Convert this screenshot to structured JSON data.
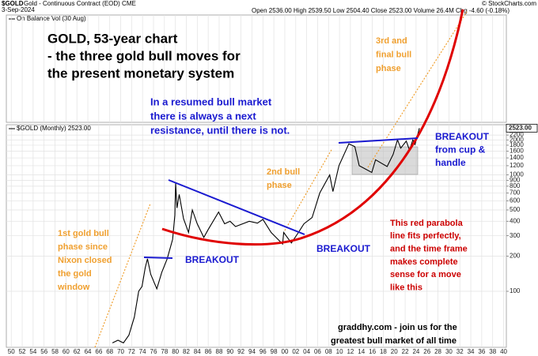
{
  "header": {
    "symbol": "$GOLD",
    "description": "Gold - Continuous Contract (EOD) CME",
    "date": "3-Sep-2024",
    "quote": "Open 2536.00 High 2539.50 Low 2504.40 Close 2523.00 Volume 26.4M Chg -4.60 (-0.18%)",
    "credit": "© StockCharts.com",
    "indicator": "On Balance Vol (30 Aug)"
  },
  "chart_data": {
    "type": "line",
    "legend": "$GOLD (Monthly) 2523.00",
    "last_value_label": "2523.00",
    "color": "#000000",
    "log_y": true,
    "grid": true,
    "x": [
      1968.5,
      1969.5,
      1970.5,
      1971.5,
      1972.5,
      1973.3,
      1973.9,
      1974.5,
      1974.9,
      1975.5,
      1976.6,
      1977.5,
      1978.5,
      1979.5,
      1979.9,
      1980.05,
      1980.3,
      1980.7,
      1981.5,
      1982.4,
      1983.1,
      1984,
      1985.2,
      1986,
      1987.9,
      1989,
      1990,
      1991,
      1993.5,
      1995,
      1996,
      1997.5,
      1999.6,
      1999.8,
      2001.2,
      2002.5,
      2003.5,
      2005,
      2006.4,
      2008.2,
      2008.8,
      2009.9,
      2011.7,
      2012.8,
      2013.6,
      2015.9,
      2016.6,
      2018.7,
      2019.8,
      2020.6,
      2021.2,
      2022.2,
      2022.8,
      2023.4,
      2023.8,
      2024.1,
      2024.6
    ],
    "values": [
      36,
      38,
      36,
      42,
      60,
      100,
      110,
      160,
      190,
      140,
      105,
      145,
      190,
      280,
      450,
      850,
      520,
      680,
      420,
      320,
      500,
      380,
      290,
      340,
      480,
      380,
      400,
      360,
      400,
      385,
      415,
      320,
      255,
      320,
      260,
      320,
      380,
      430,
      700,
      1000,
      720,
      1200,
      1850,
      1750,
      1200,
      1050,
      1350,
      1180,
      1500,
      2000,
      1700,
      1950,
      1630,
      2000,
      1830,
      2050,
      2523
    ],
    "xlim": [
      1949.1,
      2040.5
    ],
    "ylim": [
      33,
      2700
    ],
    "xticks": [
      {
        "value": 1950,
        "label": "50"
      },
      {
        "value": 1952,
        "label": "52"
      },
      {
        "value": 1954,
        "label": "54"
      },
      {
        "value": 1956,
        "label": "56"
      },
      {
        "value": 1958,
        "label": "58"
      },
      {
        "value": 1960,
        "label": "60"
      },
      {
        "value": 1962,
        "label": "62"
      },
      {
        "value": 1964,
        "label": "64"
      },
      {
        "value": 1966,
        "label": "66"
      },
      {
        "value": 1968,
        "label": "68"
      },
      {
        "value": 1970,
        "label": "70"
      },
      {
        "value": 1972,
        "label": "72"
      },
      {
        "value": 1974,
        "label": "74"
      },
      {
        "value": 1976,
        "label": "76"
      },
      {
        "value": 1978,
        "label": "78"
      },
      {
        "value": 1980,
        "label": "80"
      },
      {
        "value": 1982,
        "label": "82"
      },
      {
        "value": 1984,
        "label": "84"
      },
      {
        "value": 1986,
        "label": "86"
      },
      {
        "value": 1988,
        "label": "88"
      },
      {
        "value": 1990,
        "label": "90"
      },
      {
        "value": 1992,
        "label": "92"
      },
      {
        "value": 1994,
        "label": "94"
      },
      {
        "value": 1996,
        "label": "96"
      },
      {
        "value": 1998,
        "label": "98"
      },
      {
        "value": 2000,
        "label": "00"
      },
      {
        "value": 2002,
        "label": "02"
      },
      {
        "value": 2004,
        "label": "04"
      },
      {
        "value": 2006,
        "label": "06"
      },
      {
        "value": 2008,
        "label": "08"
      },
      {
        "value": 2010,
        "label": "10"
      },
      {
        "value": 2012,
        "label": "12"
      },
      {
        "value": 2014,
        "label": "14"
      },
      {
        "value": 2016,
        "label": "16"
      },
      {
        "value": 2018,
        "label": "18"
      },
      {
        "value": 2020,
        "label": "20"
      },
      {
        "value": 2022,
        "label": "22"
      },
      {
        "value": 2024,
        "label": "24"
      },
      {
        "value": 2026,
        "label": "26"
      },
      {
        "value": 2028,
        "label": "28"
      },
      {
        "value": 2030,
        "label": "30"
      },
      {
        "value": 2032,
        "label": "32"
      },
      {
        "value": 2034,
        "label": "34"
      },
      {
        "value": 2036,
        "label": "36"
      },
      {
        "value": 2038,
        "label": "38"
      },
      {
        "value": 2040,
        "label": "40"
      }
    ],
    "yticks": [
      100,
      200,
      300,
      400,
      500,
      600,
      700,
      800,
      900,
      1000,
      1200,
      1400,
      1600,
      1800,
      2000,
      2200
    ]
  },
  "annotations": [
    {
      "lines": [
        "GOLD, 53-year chart",
        "- the three gold bull moves for",
        "the present monetary system"
      ],
      "color": "#000000"
    },
    {
      "lines": [
        "In a resumed bull market",
        "there is always a next",
        "resistance, until there is not."
      ],
      "color": "#1a1ad0"
    },
    {
      "lines": [
        "3rd and",
        "final bull",
        "phase"
      ],
      "color": "#f0a030"
    },
    {
      "lines": [
        "2nd bull",
        "phase"
      ],
      "color": "#f0a030"
    },
    {
      "lines": [
        "1st gold bull",
        "phase since",
        "Nixon closed",
        "the gold",
        "window"
      ],
      "color": "#f0a030"
    },
    {
      "lines": [
        "BREAKOUT"
      ],
      "color": "#1a1ad0"
    },
    {
      "lines": [
        "BREAKOUT"
      ],
      "color": "#1a1ad0"
    },
    {
      "lines": [
        "BREAKOUT",
        "from cup &",
        "handle"
      ],
      "color": "#1a1ad0"
    },
    {
      "lines": [
        "This red parabola",
        "line fits perfectly,",
        "and the time frame",
        "makes complete",
        "sense for a move",
        "like this"
      ],
      "color": "#cc0000"
    },
    {
      "lines": [
        "graddhy.com - join us for the",
        "greatest bull market of all time"
      ],
      "color": "#000000"
    }
  ]
}
